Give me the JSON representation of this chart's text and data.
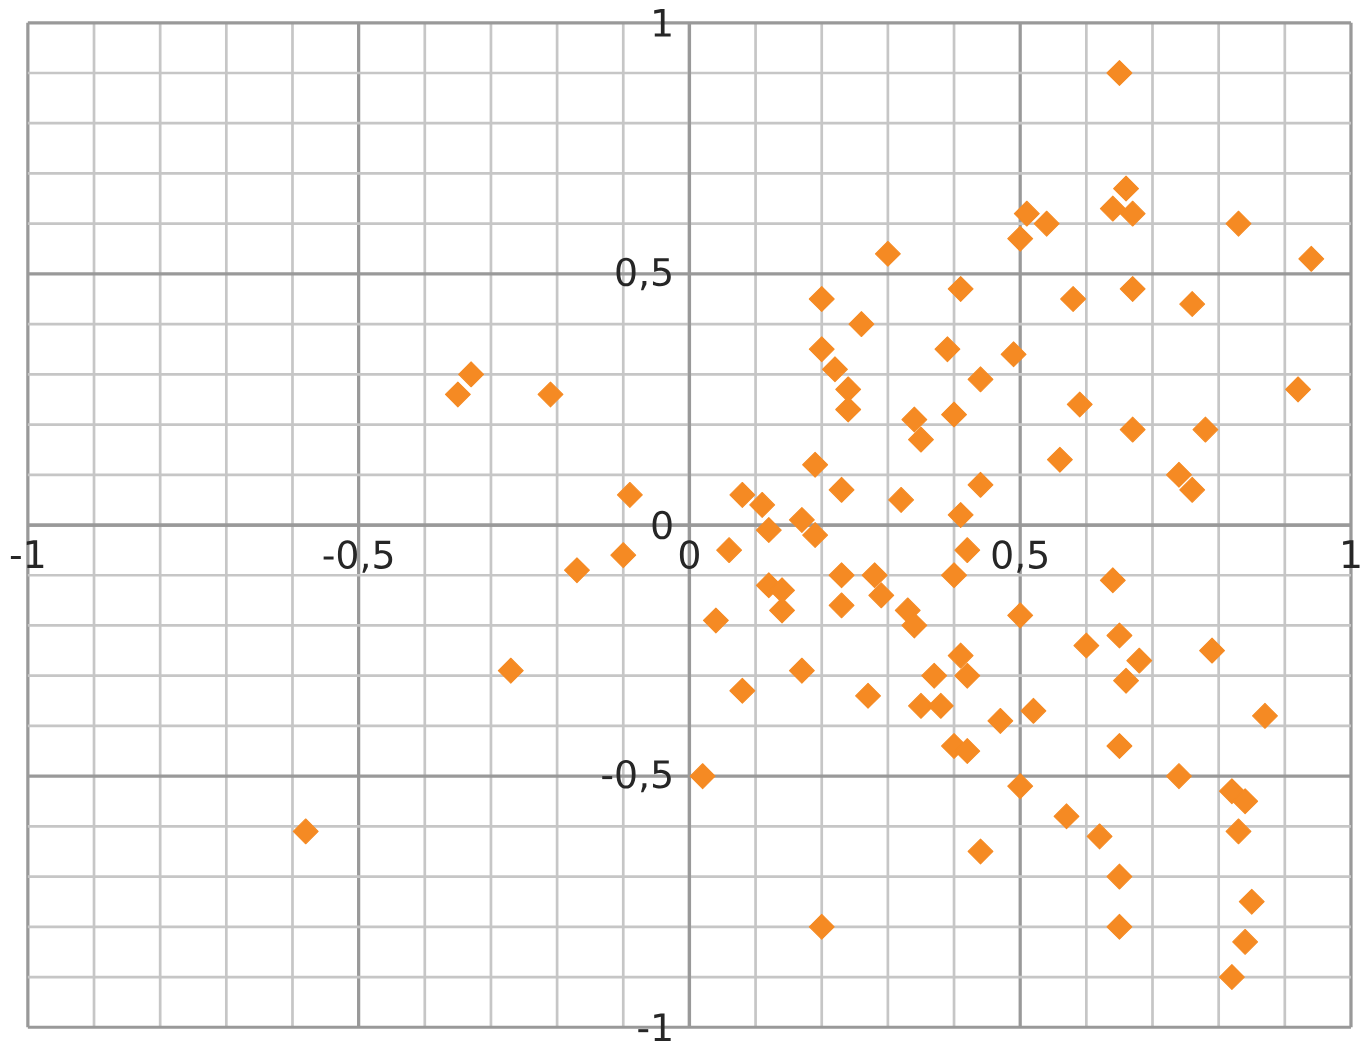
{
  "chart_data": {
    "type": "scatter",
    "marker": "diamond",
    "grid": true,
    "xlim": [
      -1,
      1
    ],
    "ylim": [
      -1,
      1
    ],
    "xticks": [
      -1,
      {
        "value": -0.5,
        "label": "-0,5"
      },
      0,
      {
        "value": 0.5,
        "label": "0,5"
      },
      1
    ],
    "yticks": [
      -1,
      {
        "value": -0.5,
        "label": "-0,5"
      },
      0,
      {
        "value": 0.5,
        "label": "0,5"
      },
      1
    ],
    "series": [
      {
        "color": "#f58a23",
        "x": [
          -0.58,
          -0.35,
          -0.33,
          -0.21,
          -0.27,
          -0.17,
          -0.09,
          -0.1,
          0.02,
          0.06,
          0.04,
          0.08,
          0.11,
          0.08,
          0.12,
          0.14,
          0.14,
          0.12,
          0.17,
          0.17,
          0.19,
          0.19,
          0.2,
          0.2,
          0.22,
          0.24,
          0.24,
          0.26,
          0.3,
          0.23,
          0.23,
          0.23,
          0.27,
          0.28,
          0.29,
          0.32,
          0.33,
          0.34,
          0.34,
          0.35,
          0.35,
          0.37,
          0.38,
          0.39,
          0.4,
          0.41,
          0.4,
          0.41,
          0.42,
          0.4,
          0.41,
          0.42,
          0.44,
          0.44,
          0.42,
          0.44,
          0.47,
          0.49,
          0.5,
          0.52,
          0.5,
          0.5,
          0.51,
          0.54,
          0.56,
          0.57,
          0.58,
          0.59,
          0.6,
          0.62,
          0.64,
          0.65,
          0.64,
          0.66,
          0.67,
          0.67,
          0.65,
          0.65,
          0.65,
          0.65,
          0.66,
          0.68,
          0.67,
          0.76,
          0.78,
          0.79,
          0.74,
          0.76,
          0.74,
          0.83,
          0.82,
          0.84,
          0.83,
          0.85,
          0.84,
          0.82,
          0.87,
          0.92,
          0.94,
          0.2
        ],
        "values": [
          -0.61,
          0.26,
          0.3,
          0.26,
          -0.29,
          -0.09,
          0.06,
          -0.06,
          -0.5,
          -0.05,
          -0.19,
          0.06,
          0.04,
          -0.33,
          -0.12,
          -0.17,
          -0.13,
          -0.01,
          -0.29,
          0.01,
          -0.02,
          0.12,
          0.45,
          0.35,
          0.31,
          0.27,
          0.23,
          0.4,
          0.54,
          0.07,
          -0.1,
          -0.16,
          -0.34,
          -0.1,
          -0.14,
          0.05,
          -0.17,
          -0.2,
          0.21,
          0.17,
          -0.36,
          -0.3,
          -0.36,
          0.35,
          0.22,
          0.47,
          -0.1,
          0.02,
          -0.05,
          -0.44,
          -0.26,
          -0.3,
          0.08,
          0.29,
          -0.45,
          -0.65,
          -0.39,
          0.34,
          -0.18,
          -0.37,
          -0.52,
          0.57,
          0.62,
          0.6,
          0.13,
          -0.58,
          0.45,
          0.24,
          -0.24,
          -0.62,
          -0.11,
          0.9,
          0.63,
          0.67,
          0.62,
          0.47,
          -0.22,
          -0.44,
          -0.7,
          -0.8,
          -0.31,
          -0.27,
          0.19,
          0.44,
          0.19,
          -0.25,
          -0.5,
          0.07,
          0.1,
          0.6,
          -0.53,
          -0.55,
          -0.61,
          -0.75,
          -0.83,
          -0.9,
          -0.38,
          0.27,
          0.53,
          -0.8
        ]
      }
    ]
  }
}
